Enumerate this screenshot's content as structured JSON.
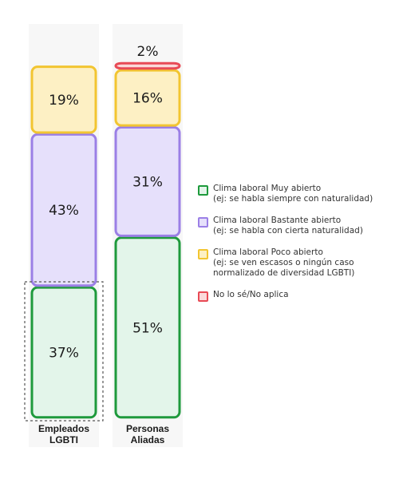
{
  "chart_data": {
    "type": "bar",
    "stacked": true,
    "orientation": "vertical",
    "categories": [
      "Empleados LGBTI",
      "Personas Aliadas"
    ],
    "series": [
      {
        "name": "Clima laboral Muy abierto",
        "values": [
          37,
          51
        ],
        "labels": [
          "37%",
          "51%"
        ]
      },
      {
        "name": "Clima laboral Bastante abierto",
        "values": [
          43,
          31
        ],
        "labels": [
          "43%",
          "31%"
        ]
      },
      {
        "name": "Clima laboral Poco abierto",
        "values": [
          19,
          16
        ],
        "labels": [
          "19%",
          "16%"
        ]
      },
      {
        "name": "No lo sé/No aplica",
        "values": [
          0,
          2
        ],
        "labels": [
          "",
          "2%"
        ]
      }
    ],
    "colors": {
      "muy": {
        "fill": "#e3f5ea",
        "stroke": "#1e9a3c"
      },
      "bastante": {
        "fill": "#e6e0fb",
        "stroke": "#9b7fe6"
      },
      "poco": {
        "fill": "#fdf0c4",
        "stroke": "#f2c531"
      },
      "nose": {
        "fill": "#fbd9da",
        "stroke": "#e84a55"
      }
    },
    "column_background": "#f7f7f7",
    "highlighted_segment": {
      "category": "Empleados LGBTI",
      "series": "Clima laboral Muy abierto",
      "style": "dashed-outline"
    },
    "legend_position": "right",
    "legend": [
      {
        "label": "Clima laboral Muy abierto",
        "sublabel": "(ej: se habla siempre con naturalidad)",
        "color_key": "muy"
      },
      {
        "label": "Clima laboral Bastante abierto",
        "sublabel": "(ej: se habla con cierta naturalidad)",
        "color_key": "bastante"
      },
      {
        "label": "Clima laboral Poco abierto",
        "sublabel": "(ej: se ven escasos o ningún caso normalizado de diversidad LGBTI)",
        "color_key": "poco"
      },
      {
        "label": "No lo sé/No aplica",
        "sublabel": "",
        "color_key": "nose"
      }
    ],
    "x_labels": [
      {
        "line1": "Empleados",
        "line2": "LGBTI"
      },
      {
        "line1": "Personas",
        "line2": "Aliadas"
      }
    ]
  }
}
